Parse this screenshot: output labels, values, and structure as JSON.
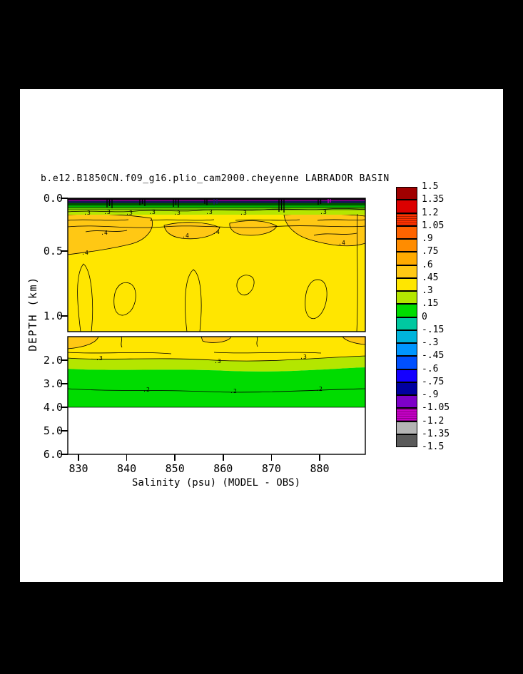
{
  "page": {
    "bg": "#000000",
    "panel_bg": "#ffffff"
  },
  "chart_data": {
    "type": "contour",
    "title": "b.e12.B1850CN.f09_g16.plio_cam2000.cheyenne LABRADOR BASIN",
    "xlabel": "Salinity (psu) (MODEL - OBS)",
    "ylabel": "DEPTH (km)",
    "x_tick_labels": [
      "830",
      "840",
      "850",
      "860",
      "870",
      "880"
    ],
    "upper_panel": {
      "y_tick_labels": [
        "0.0",
        "0.5",
        "1.0"
      ]
    },
    "lower_panel": {
      "y_tick_labels": [
        "2.0",
        "3.0",
        "4.0",
        "5.0",
        "6.0"
      ]
    },
    "contour_label_values": {
      "p2": ".2",
      "p3": ".3",
      "p4": ".4"
    },
    "fill_colors": {
      "yellow": "#ffe600",
      "gold": "#ffc814",
      "yellow_green": "#b4e600",
      "green": "#00dc00",
      "no_data": "#ffffff"
    },
    "surface_stripes": [
      "#000000",
      "#b400b4",
      "#1e1e78",
      "#005a00",
      "#00b400",
      "#64c800"
    ],
    "colorbar": {
      "labels": [
        "1.5",
        "1.35",
        "1.2",
        "1.05",
        ".9",
        ".75",
        ".6",
        ".45",
        ".3",
        ".15",
        "0",
        "-.15",
        "-.3",
        "-.45",
        "-.6",
        "-.75",
        "-.9",
        "-1.05",
        "-1.2",
        "-1.35",
        "-1.5"
      ],
      "colors": [
        "#a00000",
        "#dc0000",
        "#ff3200",
        "#ff6400",
        "#ff8c00",
        "#ffaa00",
        "#ffc814",
        "#ffe600",
        "#b4e600",
        "#00dc00",
        "#00c8a0",
        "#00b4dc",
        "#0096ff",
        "#0050ff",
        "#1400ff",
        "#0000a0",
        "#7d00c8",
        "#c800c8",
        "#b4b4b4",
        "#5a5a5a"
      ],
      "hatched_indices": [
        2,
        17
      ]
    }
  }
}
